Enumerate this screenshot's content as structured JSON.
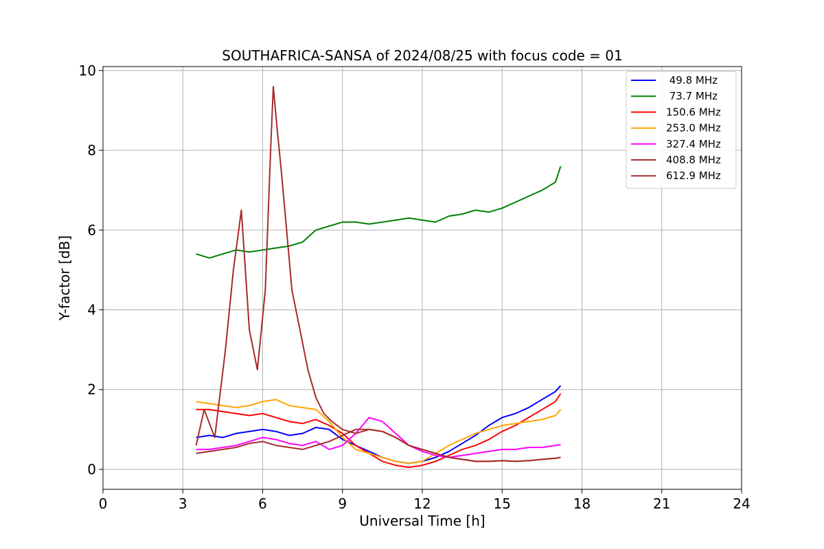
{
  "chart_data": {
    "type": "line",
    "title": "SOUTHAFRICA-SANSA of 2024/08/25 with focus code = 01",
    "xlabel": "Universal Time [h]",
    "ylabel": "Y-factor [dB]",
    "xlim": [
      0,
      24
    ],
    "ylim": [
      -0.5,
      10.1
    ],
    "xticks": [
      0,
      3,
      6,
      9,
      12,
      15,
      18,
      21,
      24
    ],
    "yticks": [
      0,
      2,
      4,
      6,
      8,
      10
    ],
    "grid": true,
    "legend_position": "top-right",
    "series": [
      {
        "name": " 49.8 MHz",
        "color": "#0000ff",
        "x": [
          3.5,
          4,
          4.5,
          5,
          5.5,
          6,
          6.5,
          7,
          7.5,
          8,
          8.5,
          9,
          9.5,
          10,
          10.5,
          11,
          11.5,
          12,
          12.5,
          13,
          13.5,
          14,
          14.5,
          15,
          15.5,
          16,
          16.5,
          17,
          17.2
        ],
        "y": [
          0.8,
          0.85,
          0.8,
          0.9,
          0.95,
          1.0,
          0.95,
          0.85,
          0.9,
          1.05,
          1.0,
          0.75,
          0.6,
          0.45,
          0.3,
          0.2,
          0.15,
          0.2,
          0.3,
          0.45,
          0.65,
          0.85,
          1.1,
          1.3,
          1.4,
          1.55,
          1.75,
          1.95,
          2.1
        ]
      },
      {
        "name": " 73.7 MHz",
        "color": "#008000",
        "x": [
          3.5,
          4,
          4.5,
          5,
          5.5,
          6,
          6.5,
          7,
          7.5,
          8,
          8.5,
          9,
          9.5,
          10,
          10.5,
          11,
          11.5,
          12,
          12.5,
          13,
          13.5,
          14,
          14.5,
          15,
          15.5,
          16,
          16.5,
          17,
          17.2
        ],
        "y": [
          5.4,
          5.3,
          5.4,
          5.5,
          5.45,
          5.5,
          5.55,
          5.6,
          5.7,
          6.0,
          6.1,
          6.2,
          6.2,
          6.15,
          6.2,
          6.25,
          6.3,
          6.25,
          6.2,
          6.35,
          6.4,
          6.5,
          6.45,
          6.55,
          6.7,
          6.85,
          7.0,
          7.2,
          7.6
        ]
      },
      {
        "name": "150.6 MHz",
        "color": "#ff0000",
        "x": [
          3.5,
          4,
          4.5,
          5,
          5.5,
          6,
          6.5,
          7,
          7.5,
          8,
          8.5,
          9,
          9.5,
          10,
          10.5,
          11,
          11.5,
          12,
          12.5,
          13,
          13.5,
          14,
          14.5,
          15,
          15.5,
          16,
          16.5,
          17,
          17.2
        ],
        "y": [
          1.5,
          1.5,
          1.45,
          1.4,
          1.35,
          1.4,
          1.3,
          1.2,
          1.15,
          1.25,
          1.1,
          0.9,
          0.6,
          0.4,
          0.2,
          0.1,
          0.05,
          0.1,
          0.2,
          0.35,
          0.5,
          0.6,
          0.75,
          0.95,
          1.1,
          1.3,
          1.5,
          1.7,
          1.9
        ]
      },
      {
        "name": "253.0 MHz",
        "color": "#ffa500",
        "x": [
          3.5,
          4,
          4.5,
          5,
          5.5,
          6,
          6.5,
          7,
          7.5,
          8,
          8.5,
          9,
          9.5,
          10,
          10.5,
          11,
          11.5,
          12,
          12.5,
          13,
          13.5,
          14,
          14.5,
          15,
          15.5,
          16,
          16.5,
          17,
          17.2
        ],
        "y": [
          1.7,
          1.65,
          1.6,
          1.55,
          1.6,
          1.7,
          1.75,
          1.6,
          1.55,
          1.5,
          1.2,
          0.8,
          0.5,
          0.4,
          0.3,
          0.2,
          0.15,
          0.2,
          0.4,
          0.6,
          0.75,
          0.9,
          1.0,
          1.1,
          1.15,
          1.2,
          1.25,
          1.35,
          1.5
        ]
      },
      {
        "name": "327.4 MHz",
        "color": "#ff00ff",
        "x": [
          3.5,
          4,
          4.5,
          5,
          5.5,
          6,
          6.5,
          7,
          7.5,
          8,
          8.5,
          9,
          9.5,
          10,
          10.5,
          11,
          11.5,
          12,
          12.5,
          13,
          13.5,
          14,
          14.5,
          15,
          15.5,
          16,
          16.5,
          17,
          17.2
        ],
        "y": [
          0.5,
          0.5,
          0.55,
          0.6,
          0.7,
          0.8,
          0.75,
          0.65,
          0.6,
          0.7,
          0.5,
          0.6,
          0.9,
          1.3,
          1.2,
          0.9,
          0.6,
          0.45,
          0.35,
          0.3,
          0.35,
          0.4,
          0.45,
          0.5,
          0.5,
          0.55,
          0.55,
          0.6,
          0.62
        ]
      },
      {
        "name": "408.8 MHz",
        "color": "#a52a2a",
        "x": [
          3.5,
          4,
          4.5,
          5,
          5.5,
          6,
          6.5,
          7,
          7.5,
          8,
          8.5,
          9,
          9.5,
          10,
          10.5,
          11,
          11.5,
          12,
          12.5,
          13,
          13.5,
          14,
          14.5,
          15,
          15.5,
          16,
          16.5,
          17,
          17.2
        ],
        "y": [
          0.4,
          0.45,
          0.5,
          0.55,
          0.65,
          0.7,
          0.6,
          0.55,
          0.5,
          0.6,
          0.7,
          0.85,
          1.0,
          1.0,
          0.95,
          0.8,
          0.6,
          0.5,
          0.4,
          0.3,
          0.25,
          0.2,
          0.2,
          0.22,
          0.2,
          0.22,
          0.25,
          0.28,
          0.3
        ]
      },
      {
        "name": "612.9 MHz",
        "color": "#a52a2a",
        "x": [
          3.5,
          3.8,
          4.2,
          4.6,
          4.9,
          5.2,
          5.5,
          5.8,
          6.1,
          6.3,
          6.4,
          6.55,
          6.7,
          6.9,
          7.1,
          7.4,
          7.7,
          8.0,
          8.3,
          8.6,
          9.0,
          9.5,
          10,
          10.5,
          11,
          11.5,
          12,
          12.5,
          13,
          13.5,
          14,
          14.5,
          15,
          15.5,
          16,
          16.5,
          17,
          17.2
        ],
        "y": [
          0.6,
          1.5,
          0.8,
          3.0,
          5.0,
          6.5,
          3.5,
          2.5,
          4.5,
          8.0,
          9.6,
          8.5,
          7.5,
          6.0,
          4.5,
          3.5,
          2.5,
          1.8,
          1.4,
          1.2,
          1.0,
          0.9,
          1.0,
          0.95,
          0.8,
          0.6,
          0.5,
          0.4,
          0.3,
          0.25,
          0.2,
          0.2,
          0.22,
          0.2,
          0.22,
          0.25,
          0.28,
          0.3
        ]
      }
    ]
  }
}
